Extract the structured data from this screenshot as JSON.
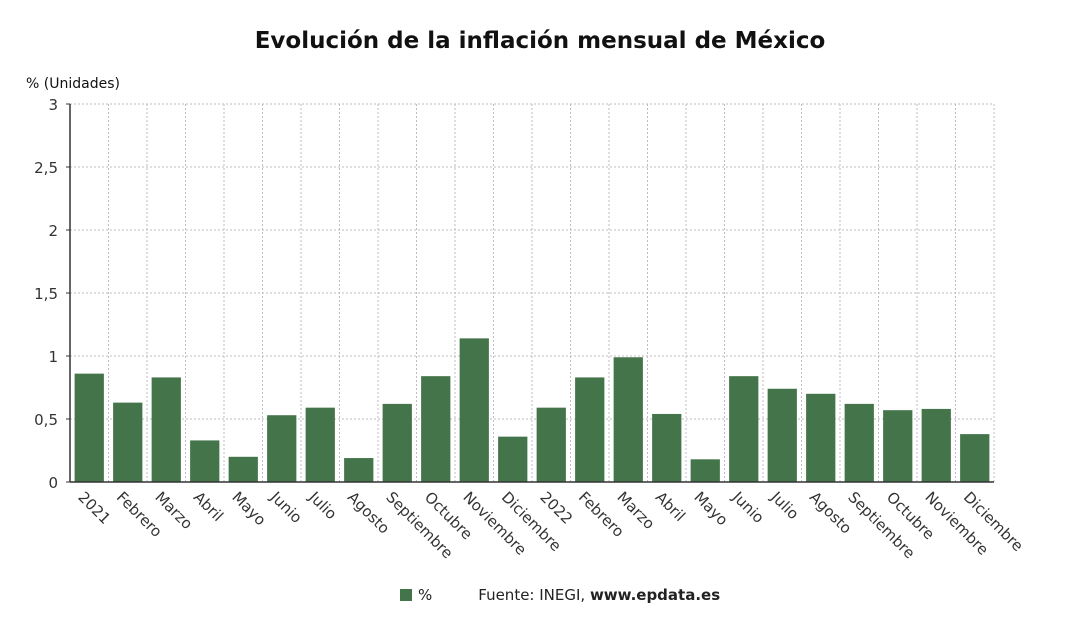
{
  "chart_data": {
    "type": "bar",
    "title": "Evolución de la inflación mensual de México",
    "ylabel": "% (Unidades)",
    "ylim": [
      0,
      3
    ],
    "yticks": [
      "0",
      "0,5",
      "1",
      "1,5",
      "2",
      "2,5",
      "3"
    ],
    "ytick_values": [
      0,
      0.5,
      1,
      1.5,
      2,
      2.5,
      3
    ],
    "grid": true,
    "legend_position": "bottom",
    "bar_color": "#44744a",
    "categories": [
      "2021",
      "Febrero",
      "Marzo",
      "Abril",
      "Mayo",
      "Junio",
      "Julio",
      "Agosto",
      "Septiembre",
      "Octubre",
      "Noviembre",
      "Diciembre",
      "2022",
      "Febrero",
      "Marzo",
      "Abril",
      "Mayo",
      "Junio",
      "Julio",
      "Agosto",
      "Septiembre",
      "Octubre",
      "Noviembre",
      "Diciembre"
    ],
    "series": [
      {
        "name": "%",
        "values": [
          0.86,
          0.63,
          0.83,
          0.33,
          0.2,
          0.53,
          0.59,
          0.19,
          0.62,
          0.84,
          1.14,
          0.36,
          0.59,
          0.83,
          0.99,
          0.54,
          0.18,
          0.84,
          0.74,
          0.7,
          0.62,
          0.57,
          0.58,
          0.38
        ]
      }
    ]
  },
  "legend": {
    "label": "%"
  },
  "source": {
    "prefix": "Fuente: INEGI, ",
    "domain": "www.epdata.es"
  }
}
